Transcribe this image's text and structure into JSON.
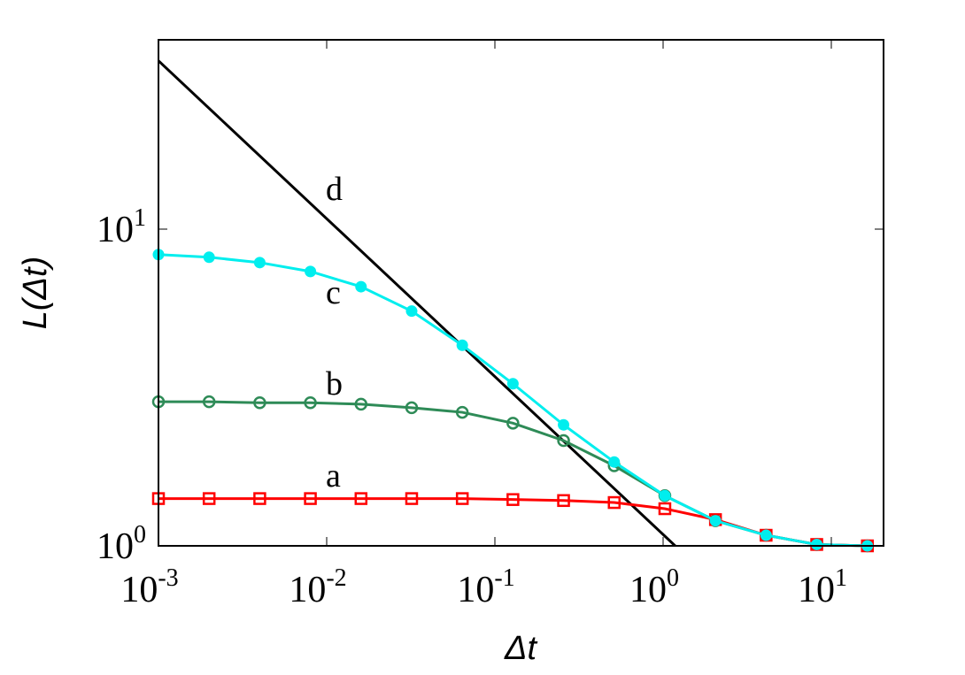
{
  "chart_data": {
    "type": "line",
    "title": "",
    "xlabel": "Δt",
    "ylabel": "L(Δt)",
    "xscale": "log",
    "yscale": "log",
    "xlim": [
      0.001,
      20
    ],
    "ylim": [
      1,
      37
    ],
    "grid": false,
    "legend": "none; curves labeled inline a, b, c, d",
    "x_ticks": [
      {
        "base": "10",
        "exp": "-3",
        "value": 0.001
      },
      {
        "base": "10",
        "exp": "-2",
        "value": 0.01
      },
      {
        "base": "10",
        "exp": "-1",
        "value": 0.1
      },
      {
        "base": "10",
        "exp": "0",
        "value": 1
      },
      {
        "base": "10",
        "exp": "1",
        "value": 10
      }
    ],
    "y_ticks": [
      {
        "base": "10",
        "exp": "0",
        "value": 1
      },
      {
        "base": "10",
        "exp": "1",
        "value": 10
      }
    ],
    "x": [
      0.001,
      0.002,
      0.004,
      0.008,
      0.016,
      0.032,
      0.064,
      0.128,
      0.256,
      0.512,
      1.024,
      2.048,
      4.096,
      8.192,
      16.384
    ],
    "series": [
      {
        "name": "a",
        "color": "#ff0000",
        "marker": "open-square",
        "values": [
          1.41,
          1.41,
          1.41,
          1.41,
          1.41,
          1.41,
          1.41,
          1.4,
          1.39,
          1.37,
          1.31,
          1.21,
          1.08,
          1.01,
          1.0
        ]
      },
      {
        "name": "b",
        "color": "#2e8b57",
        "marker": "open-circle",
        "values": [
          2.85,
          2.85,
          2.83,
          2.83,
          2.8,
          2.73,
          2.64,
          2.44,
          2.15,
          1.79,
          1.44,
          1.2,
          1.08,
          1.01,
          1.0
        ]
      },
      {
        "name": "c",
        "color": "#00eeee",
        "marker": "filled-circle",
        "values": [
          8.31,
          8.15,
          7.84,
          7.35,
          6.58,
          5.51,
          4.3,
          3.25,
          2.41,
          1.84,
          1.44,
          1.2,
          1.08,
          1.01,
          1.0
        ]
      },
      {
        "name": "d",
        "color": "#000000",
        "marker": "none",
        "description": "power-law reference line L ∝ Δt^-1",
        "points": [
          [
            0.001,
            34.0
          ],
          [
            1.18,
            1.0
          ]
        ]
      }
    ],
    "annotations": [
      {
        "text": "a",
        "x": 0.012,
        "y": 1.55
      },
      {
        "text": "b",
        "x": 0.012,
        "y": 3.1
      },
      {
        "text": "c",
        "x": 0.012,
        "y": 6.0
      },
      {
        "text": "d",
        "x": 0.012,
        "y": 13.5
      }
    ]
  },
  "labels": {
    "x_axis_title": "Δt",
    "y_axis_title": "L(Δt)",
    "curve_a": "a",
    "curve_b": "b",
    "curve_c": "c",
    "curve_d": "d"
  }
}
